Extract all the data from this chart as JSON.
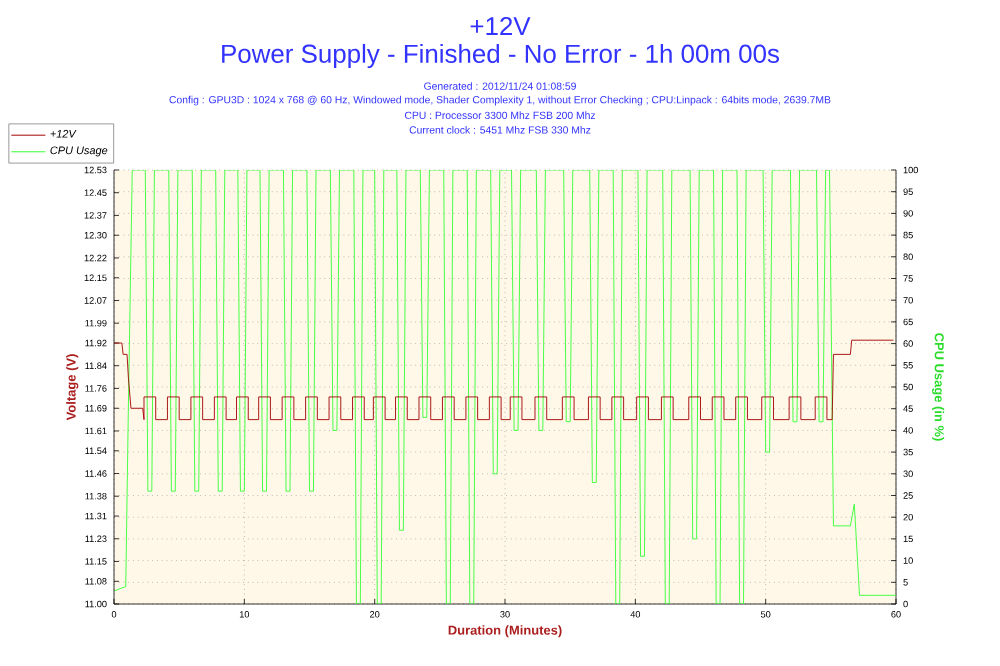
{
  "chart_data": {
    "type": "line",
    "title": "+12V",
    "subtitle": "Power Supply - Finished - No Error - 1h 00m 00s",
    "annotations": [
      "Generated : 2012/11/24 01:08:59",
      "Config : GPU3D : 1024 x 768 @ 60 Hz, Windowed mode, Shader Complexity 1, without Error Checking ; CPU:Linpack : 64bits mode, 2639.7MB",
      "CPU : Processor 3300 Mhz FSB 200 Mhz",
      "Current clock : 5451 Mhz FSB 330 Mhz"
    ],
    "xlabel": "Duration (Minutes)",
    "ylabel": "Voltage (V)",
    "y2label": "CPU Usage (in %)",
    "xlim": [
      0,
      60
    ],
    "xticks": [
      0,
      10,
      20,
      30,
      40,
      50,
      60
    ],
    "ylim": [
      11.0,
      12.53
    ],
    "yticks": [
      {
        "value": 11.0,
        "label": "11.00"
      },
      11.08,
      11.15,
      11.23,
      11.31,
      11.38,
      11.46,
      11.54,
      11.61,
      11.69,
      11.76,
      11.84,
      11.92,
      11.99,
      12.07,
      12.15,
      12.22,
      {
        "value": 12.3,
        "label": "12.30"
      },
      12.37,
      12.45,
      12.53
    ],
    "y2lim": [
      0,
      100
    ],
    "y2ticks": [
      0,
      5,
      10,
      15,
      20,
      25,
      30,
      35,
      40,
      45,
      50,
      55,
      60,
      65,
      70,
      75,
      80,
      85,
      90,
      95,
      100
    ],
    "grid": true,
    "legend": "top left",
    "marker": "none",
    "line_style": "solid",
    "series": [
      {
        "name": "+12V",
        "color": "#a00000",
        "axis": "y",
        "x": [
          0,
          0.6,
          0.7,
          1.0,
          1.1,
          1.3,
          2.2,
          2.3,
          2.3,
          3.2,
          3.2,
          4.1,
          4.1,
          5.0,
          5.0,
          5.9,
          5.9,
          6.8,
          6.8,
          7.7,
          7.7,
          8.6,
          8.6,
          9.4,
          9.4,
          10.3,
          10.3,
          11.1,
          11.1,
          12.0,
          12.0,
          12.9,
          12.9,
          13.8,
          13.8,
          14.7,
          14.7,
          15.6,
          15.6,
          16.5,
          16.5,
          17.4,
          17.4,
          18.3,
          18.3,
          19.2,
          19.2,
          19.9,
          19.9,
          20.8,
          20.8,
          21.6,
          21.6,
          22.5,
          22.5,
          23.4,
          23.4,
          24.3,
          24.3,
          25.2,
          25.2,
          26.1,
          26.1,
          27.0,
          27.0,
          27.9,
          27.9,
          28.8,
          28.8,
          29.7,
          29.7,
          30.4,
          30.4,
          31.3,
          31.3,
          32.3,
          32.3,
          33.2,
          33.2,
          34.4,
          34.4,
          35.3,
          35.3,
          36.4,
          36.4,
          37.3,
          37.3,
          38.2,
          38.2,
          39.1,
          39.1,
          40.1,
          40.1,
          41.0,
          41.0,
          42.0,
          42.0,
          42.9,
          42.9,
          44.1,
          44.1,
          45.0,
          45.0,
          45.9,
          45.9,
          46.8,
          46.8,
          47.7,
          47.7,
          48.6,
          48.6,
          49.7,
          49.7,
          50.6,
          50.6,
          51.8,
          51.8,
          52.7,
          52.7,
          53.8,
          53.8,
          54.7,
          54.7,
          55.1,
          55.2,
          56.5,
          56.6,
          59.8
        ],
        "values": [
          11.92,
          11.92,
          11.88,
          11.88,
          11.8,
          11.69,
          11.69,
          11.65,
          11.73,
          11.73,
          11.65,
          11.65,
          11.73,
          11.73,
          11.65,
          11.65,
          11.73,
          11.73,
          11.65,
          11.65,
          11.73,
          11.73,
          11.65,
          11.65,
          11.73,
          11.73,
          11.65,
          11.65,
          11.73,
          11.73,
          11.65,
          11.65,
          11.73,
          11.73,
          11.65,
          11.65,
          11.73,
          11.73,
          11.65,
          11.65,
          11.73,
          11.73,
          11.65,
          11.65,
          11.73,
          11.73,
          11.65,
          11.65,
          11.73,
          11.73,
          11.65,
          11.65,
          11.73,
          11.73,
          11.65,
          11.65,
          11.73,
          11.73,
          11.65,
          11.65,
          11.73,
          11.73,
          11.65,
          11.65,
          11.73,
          11.73,
          11.65,
          11.65,
          11.73,
          11.73,
          11.65,
          11.65,
          11.73,
          11.73,
          11.65,
          11.65,
          11.73,
          11.73,
          11.65,
          11.65,
          11.73,
          11.73,
          11.65,
          11.65,
          11.73,
          11.73,
          11.65,
          11.65,
          11.73,
          11.73,
          11.65,
          11.65,
          11.73,
          11.73,
          11.65,
          11.65,
          11.73,
          11.73,
          11.65,
          11.65,
          11.73,
          11.73,
          11.65,
          11.65,
          11.73,
          11.73,
          11.65,
          11.65,
          11.73,
          11.73,
          11.65,
          11.65,
          11.73,
          11.73,
          11.65,
          11.65,
          11.73,
          11.73,
          11.65,
          11.65,
          11.73,
          11.73,
          11.65,
          11.65,
          11.88,
          11.88,
          11.93,
          11.93
        ]
      },
      {
        "name": "CPU Usage",
        "color": "#33ff33",
        "axis": "y2",
        "x": [
          0,
          0.9,
          1.1,
          1.4,
          2.4,
          2.6,
          2.9,
          3.1,
          4.2,
          4.4,
          4.7,
          4.9,
          6.0,
          6.2,
          6.5,
          6.7,
          7.8,
          8.0,
          8.3,
          8.5,
          9.5,
          9.7,
          10.0,
          10.2,
          11.2,
          11.4,
          11.7,
          11.9,
          13.0,
          13.2,
          13.5,
          13.7,
          14.8,
          15.0,
          15.3,
          15.5,
          16.6,
          16.8,
          17.1,
          17.3,
          18.4,
          18.6,
          18.9,
          19.1,
          20.0,
          20.2,
          20.5,
          20.7,
          21.7,
          21.9,
          22.2,
          22.4,
          23.5,
          23.7,
          24.0,
          24.2,
          25.3,
          25.5,
          25.8,
          26.0,
          27.1,
          27.3,
          27.6,
          27.8,
          28.9,
          29.1,
          29.4,
          29.6,
          30.5,
          30.7,
          31.0,
          31.2,
          32.4,
          32.6,
          32.9,
          33.1,
          34.5,
          34.7,
          35.0,
          35.2,
          36.5,
          36.7,
          37.0,
          37.2,
          38.3,
          38.5,
          38.8,
          39.0,
          40.2,
          40.4,
          40.7,
          40.9,
          42.1,
          42.3,
          42.6,
          42.8,
          44.2,
          44.4,
          44.7,
          44.9,
          46.0,
          46.2,
          46.5,
          46.7,
          47.8,
          48.0,
          48.3,
          48.5,
          49.8,
          50.0,
          50.3,
          50.5,
          51.9,
          52.1,
          52.4,
          52.6,
          53.9,
          54.1,
          54.4,
          54.6,
          54.9,
          55.2,
          56.5,
          56.8,
          57.2,
          60
        ],
        "values": [
          3,
          4,
          45,
          100,
          100,
          26,
          26,
          100,
          100,
          26,
          26,
          100,
          100,
          26,
          26,
          100,
          100,
          26,
          26,
          100,
          100,
          26,
          26,
          100,
          100,
          26,
          26,
          100,
          100,
          26,
          26,
          100,
          100,
          26,
          26,
          100,
          100,
          40,
          40,
          100,
          100,
          0,
          0,
          100,
          100,
          0,
          0,
          100,
          100,
          17,
          17,
          100,
          100,
          43,
          43,
          100,
          100,
          0,
          0,
          100,
          100,
          0,
          0,
          100,
          100,
          30,
          30,
          100,
          100,
          40,
          40,
          100,
          100,
          40,
          40,
          100,
          100,
          42,
          42,
          100,
          100,
          28,
          28,
          100,
          100,
          0,
          0,
          100,
          100,
          11,
          11,
          100,
          100,
          0,
          0,
          100,
          100,
          15,
          15,
          100,
          100,
          0,
          0,
          100,
          100,
          0,
          0,
          100,
          100,
          35,
          35,
          100,
          100,
          42,
          42,
          100,
          100,
          42,
          42,
          100,
          100,
          18,
          18,
          23,
          2,
          2
        ]
      }
    ]
  }
}
